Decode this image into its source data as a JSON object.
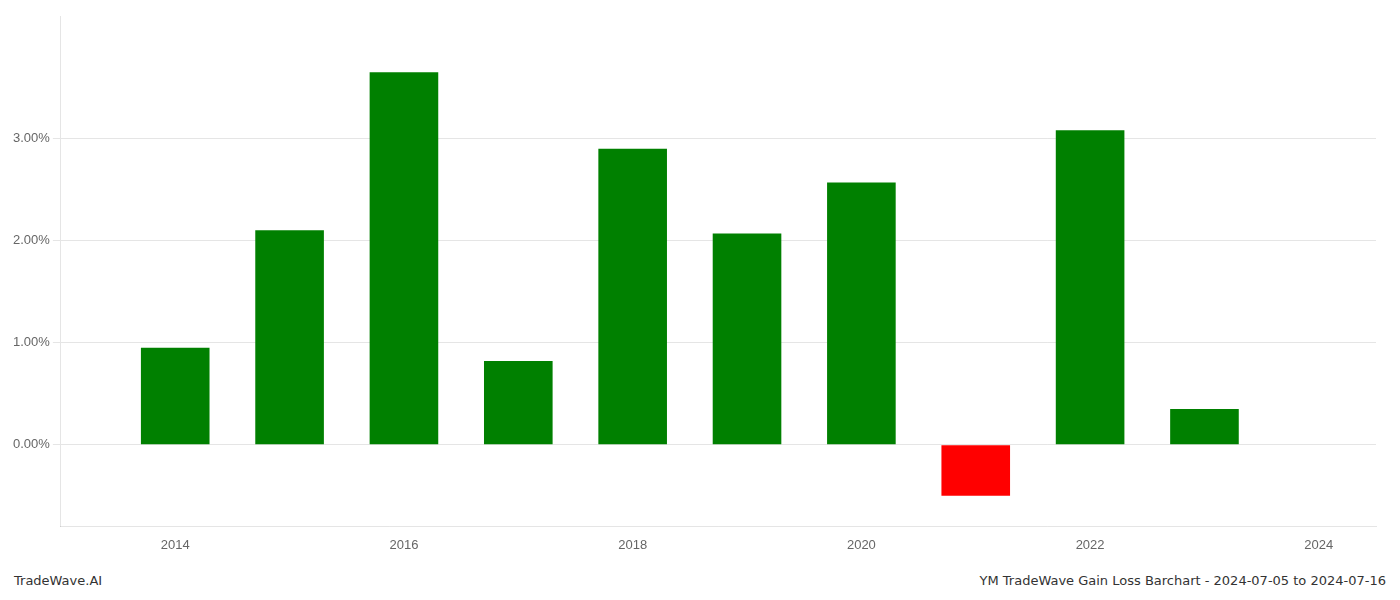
{
  "chart_data": {
    "type": "bar",
    "x": [
      2014,
      2015,
      2016,
      2017,
      2018,
      2019,
      2020,
      2021,
      2022,
      2023
    ],
    "values": [
      0.0095,
      0.021,
      0.0365,
      0.0082,
      0.029,
      0.0207,
      0.0257,
      -0.005,
      0.0308,
      0.0035
    ],
    "colors": [
      "#008000",
      "#008000",
      "#008000",
      "#008000",
      "#008000",
      "#008000",
      "#008000",
      "#ff0000",
      "#008000",
      "#008000"
    ],
    "xlim": [
      2013.0,
      2024.5
    ],
    "xticks": [
      2014,
      2016,
      2018,
      2020,
      2022,
      2024
    ],
    "ylim": [
      -0.008,
      0.042
    ],
    "yticks": [
      {
        "value": 0.0,
        "label": "0.00%"
      },
      {
        "value": 0.01,
        "label": "1.00%"
      },
      {
        "value": 0.02,
        "label": "2.00%"
      },
      {
        "value": 0.03,
        "label": "3.00%"
      }
    ],
    "grid": true,
    "annotations": [
      "TradeWave.AI",
      "YM TradeWave Gain Loss Barchart - 2024-07-05 to 2024-07-16"
    ]
  }
}
